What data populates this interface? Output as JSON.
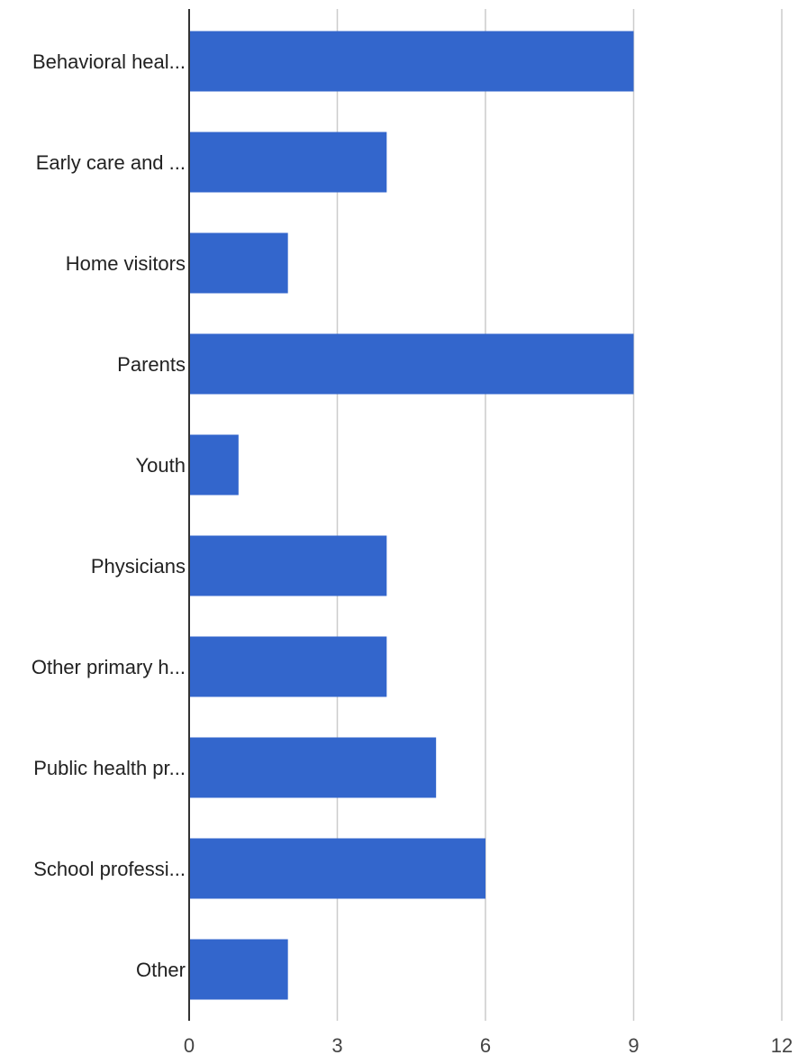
{
  "chart_data": {
    "type": "bar",
    "orientation": "horizontal",
    "categories": [
      "Behavioral heal...",
      "Early care and ...",
      "Home visitors",
      "Parents",
      "Youth",
      "Physicians",
      "Other primary h...",
      "Public health pr...",
      "School professi...",
      "Other"
    ],
    "values": [
      9,
      4,
      2,
      9,
      1,
      4,
      4,
      5,
      6,
      2
    ],
    "xlim": [
      0,
      12
    ],
    "xticks": [
      0,
      3,
      6,
      9,
      12
    ],
    "grid": true,
    "legend": "none",
    "title": "",
    "xlabel": "",
    "ylabel": "",
    "colors": {
      "bar": "#3366cc",
      "grid": "#cccccc",
      "axis": "#333333"
    }
  }
}
